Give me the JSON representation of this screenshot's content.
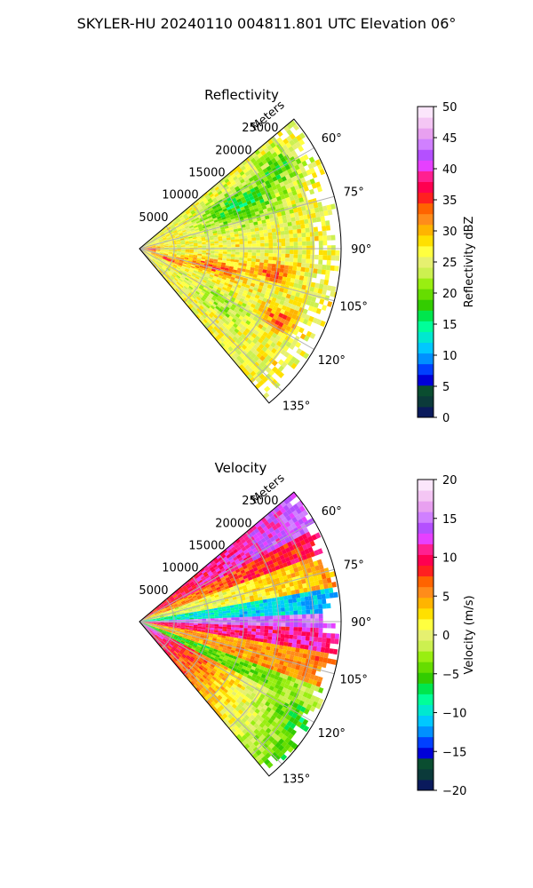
{
  "figure": {
    "suptitle": "SKYLER-HU  20240110  004811.801 UTC Elevation 06°"
  },
  "chart_data": [
    {
      "type": "heatmap",
      "title": "Reflectivity",
      "radial_label": "Meters",
      "theta_range_deg": [
        50,
        140
      ],
      "r_max_m": 29000,
      "range_ticks": [
        {
          "value": 5000,
          "label": "5000"
        },
        {
          "value": 10000,
          "label": "10000"
        },
        {
          "value": 15000,
          "label": "15000"
        },
        {
          "value": 20000,
          "label": "20000"
        },
        {
          "value": 25000,
          "label": "25000"
        }
      ],
      "azimuth_ticks": [
        {
          "value": 60,
          "label": "60°"
        },
        {
          "value": 75,
          "label": "75°"
        },
        {
          "value": 90,
          "label": "90°"
        },
        {
          "value": 105,
          "label": "105°"
        },
        {
          "value": 120,
          "label": "120°"
        },
        {
          "value": 135,
          "label": "135°"
        }
      ],
      "colorbar": {
        "label": "Reflectivity dBZ",
        "min": 0,
        "max": 50,
        "ticks": [
          {
            "value": 0,
            "label": "0"
          },
          {
            "value": 5,
            "label": "5"
          },
          {
            "value": 10,
            "label": "10"
          },
          {
            "value": 15,
            "label": "15"
          },
          {
            "value": 20,
            "label": "20"
          },
          {
            "value": 25,
            "label": "25"
          },
          {
            "value": 30,
            "label": "30"
          },
          {
            "value": 35,
            "label": "35"
          },
          {
            "value": 40,
            "label": "40"
          },
          {
            "value": 45,
            "label": "45"
          },
          {
            "value": 50,
            "label": "50"
          }
        ],
        "colors": [
          "#0a1a5c",
          "#0b3a3a",
          "#0a4d30",
          "#0000d8",
          "#0040ff",
          "#0090ff",
          "#00c8ff",
          "#00e8d0",
          "#00ff99",
          "#00e64d",
          "#33cc00",
          "#66dd00",
          "#99ee11",
          "#ccf050",
          "#e6f070",
          "#ffff40",
          "#ffe000",
          "#ffb400",
          "#ff8c1a",
          "#ff6400",
          "#ff2020",
          "#ff0050",
          "#ff2090",
          "#e640ff",
          "#b450ff",
          "#d080ff",
          "#e8a0f0",
          "#f4c6f4",
          "#fbe6fb"
        ]
      },
      "field": {
        "base_value": 26,
        "features": [
          {
            "azimuth": 67,
            "range": 15500,
            "value": 17,
            "spread_az": 9,
            "spread_r": 5500
          },
          {
            "azimuth": 60,
            "range": 23000,
            "value": 19,
            "spread_az": 6,
            "spread_r": 4000
          },
          {
            "azimuth": 104,
            "range": 10500,
            "value": 34,
            "spread_az": 5,
            "spread_r": 5000
          },
          {
            "azimuth": 110,
            "range": 4500,
            "value": 36,
            "spread_az": 4,
            "spread_r": 2500
          },
          {
            "azimuth": 100,
            "range": 19500,
            "value": 34,
            "spread_az": 4,
            "spread_r": 3000
          },
          {
            "azimuth": 117,
            "range": 22500,
            "value": 34,
            "spread_az": 4,
            "spread_r": 2500
          },
          {
            "azimuth": 92,
            "range": 1500,
            "value": 38,
            "spread_az": 10,
            "spread_r": 1200
          },
          {
            "azimuth": 124,
            "range": 14000,
            "value": 22,
            "spread_az": 6,
            "spread_r": 5000
          }
        ]
      }
    },
    {
      "type": "heatmap",
      "title": "Velocity",
      "radial_label": "Meters",
      "theta_range_deg": [
        50,
        140
      ],
      "r_max_m": 29000,
      "range_ticks": [
        {
          "value": 5000,
          "label": "5000"
        },
        {
          "value": 10000,
          "label": "10000"
        },
        {
          "value": 15000,
          "label": "15000"
        },
        {
          "value": 20000,
          "label": "20000"
        },
        {
          "value": 25000,
          "label": "25000"
        }
      ],
      "azimuth_ticks": [
        {
          "value": 60,
          "label": "60°"
        },
        {
          "value": 75,
          "label": "75°"
        },
        {
          "value": 90,
          "label": "90°"
        },
        {
          "value": 105,
          "label": "105°"
        },
        {
          "value": 120,
          "label": "120°"
        },
        {
          "value": 135,
          "label": "135°"
        }
      ],
      "colorbar": {
        "label": "Velocity (m/s)",
        "min": -20,
        "max": 20,
        "ticks": [
          {
            "value": -20,
            "label": "−20"
          },
          {
            "value": -15,
            "label": "−15"
          },
          {
            "value": -10,
            "label": "−10"
          },
          {
            "value": -5,
            "label": "−5"
          },
          {
            "value": 0,
            "label": "0"
          },
          {
            "value": 5,
            "label": "5"
          },
          {
            "value": 10,
            "label": "10"
          },
          {
            "value": 15,
            "label": "15"
          },
          {
            "value": 20,
            "label": "20"
          }
        ],
        "colors": [
          "#0a1a5c",
          "#0b3a3a",
          "#0a4d30",
          "#0000d8",
          "#0040ff",
          "#0090ff",
          "#00c8ff",
          "#00e8d0",
          "#00ff99",
          "#00e64d",
          "#33cc00",
          "#66dd00",
          "#99ee11",
          "#ccf050",
          "#e6f070",
          "#ffff40",
          "#ffe000",
          "#ffb400",
          "#ff8c1a",
          "#ff6400",
          "#ff2020",
          "#ff0050",
          "#ff2090",
          "#e640ff",
          "#b450ff",
          "#d080ff",
          "#e8a0f0",
          "#f4c6f4",
          "#fbe6fb"
        ]
      },
      "field": {
        "bands": [
          {
            "azimuth_start": 50,
            "azimuth_end": 62,
            "value_near": 8,
            "value_far": 14
          },
          {
            "azimuth_start": 62,
            "azimuth_end": 70,
            "value_near": 4,
            "value_far": 10
          },
          {
            "azimuth_start": 70,
            "azimuth_end": 80,
            "value_near": -2,
            "value_far": 5
          },
          {
            "azimuth_start": 80,
            "azimuth_end": 88,
            "value_near": -8,
            "value_far": -12
          },
          {
            "azimuth_start": 88,
            "azimuth_end": 92,
            "value_near": 15,
            "value_far": 14
          },
          {
            "azimuth_start": 92,
            "azimuth_end": 100,
            "value_near": 10,
            "value_far": 11
          },
          {
            "azimuth_start": 100,
            "azimuth_end": 110,
            "value_near": 4,
            "value_far": 6
          },
          {
            "azimuth_start": 110,
            "azimuth_end": 118,
            "value_near": -6,
            "value_far": -2
          },
          {
            "azimuth_start": 118,
            "azimuth_end": 128,
            "value_near": 14,
            "value_far": -7
          },
          {
            "azimuth_start": 128,
            "azimuth_end": 140,
            "value_near": 12,
            "value_far": -5
          }
        ]
      }
    }
  ]
}
